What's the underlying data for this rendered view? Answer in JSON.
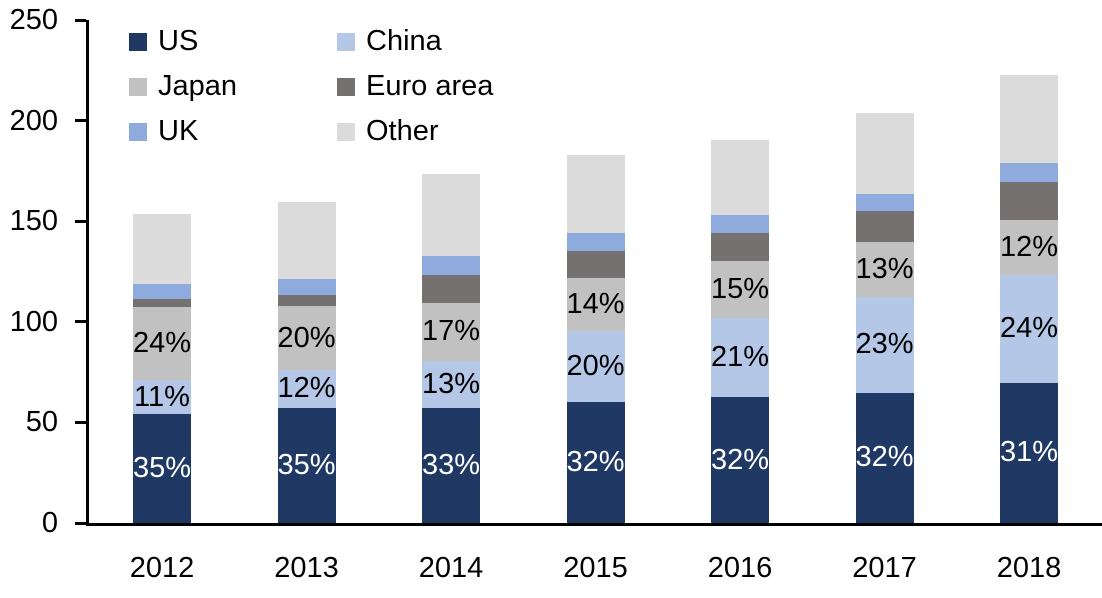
{
  "chart_data": {
    "type": "bar",
    "stacked": true,
    "title": "",
    "xlabel": "",
    "ylabel": "",
    "grid": false,
    "legend_position": "top-left",
    "legend_columns": 2,
    "ylim": [
      0,
      250
    ],
    "y_ticks": [
      0,
      50,
      100,
      150,
      200,
      250
    ],
    "categories": [
      "2012",
      "2013",
      "2014",
      "2015",
      "2016",
      "2017",
      "2018"
    ],
    "series": [
      {
        "name": "US",
        "color": "#1F3864",
        "values": [
          54.1,
          57.4,
          57.4,
          59.9,
          62.4,
          64.8,
          69.8
        ],
        "bar_labels": [
          "35%",
          "35%",
          "33%",
          "32%",
          "32%",
          "32%",
          "31%"
        ],
        "label_color": "#FFFFFF"
      },
      {
        "name": "China",
        "color": "#B4C7E7",
        "values": [
          16.8,
          18.5,
          23.1,
          35.5,
          39.6,
          47.5,
          53.7
        ],
        "bar_labels": [
          "11%",
          "12%",
          "13%",
          "20%",
          "21%",
          "23%",
          "24%"
        ],
        "label_color": "#000000"
      },
      {
        "name": "Japan",
        "color": "#C1C1C1",
        "values": [
          36.6,
          31.9,
          29.0,
          26.5,
          28.1,
          27.2,
          27.3
        ],
        "bar_labels": [
          "24%",
          "20%",
          "17%",
          "14%",
          "15%",
          "13%",
          "12%"
        ],
        "label_color": "#000000"
      },
      {
        "name": "Euro area",
        "color": "#767171",
        "values": [
          3.6,
          5.3,
          14.0,
          13.2,
          14.1,
          15.4,
          18.7
        ],
        "bar_labels": null,
        "label_color": null
      },
      {
        "name": "UK",
        "color": "#8FAADC",
        "values": [
          7.8,
          8.4,
          9.1,
          9.1,
          9.1,
          8.6,
          9.4
        ],
        "bar_labels": null,
        "label_color": null
      },
      {
        "name": "Other",
        "color": "#DBDBDB",
        "values": [
          34.7,
          38.1,
          40.9,
          38.8,
          37.2,
          40.2,
          43.8
        ],
        "bar_labels": null,
        "label_color": null
      }
    ]
  },
  "colors": {
    "background": "#FFFFFF",
    "axis": "#000000",
    "text": "#000000"
  }
}
